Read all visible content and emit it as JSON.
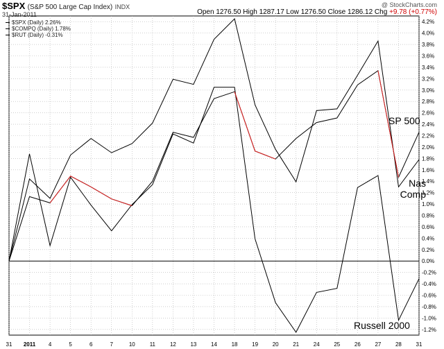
{
  "header": {
    "symbol": "$SPX",
    "name": "(S&P 500 Large Cap Index)",
    "exchange": "INDX",
    "date": "31-Jan-2011",
    "credit": "@ StockCharts.com",
    "open_label": "Open",
    "open": "1276.50",
    "high_label": "High",
    "high": "1287.17",
    "low_label": "Low",
    "low": "1276.50",
    "close_label": "Close",
    "close": "1286.12",
    "chg_label": "Chg",
    "chg": "+9.78 (+0.77%)"
  },
  "legend": [
    "$SPX (Daily) 2.26%",
    "$COMPQ (Daily) 1.78%",
    "$RUT (Daily) -0.31%"
  ],
  "annotations": {
    "sp500": "SP 500",
    "nas1": "Nas",
    "nas2": "Comp",
    "russell": "Russell 2000"
  },
  "colors": {
    "line": "#000000",
    "highlight": "#e02020",
    "grid": "#b0b0b0",
    "zero": "#000000"
  },
  "chart_data": {
    "type": "line",
    "categories": [
      "31",
      "2011",
      "4",
      "5",
      "6",
      "7",
      "10",
      "11",
      "12",
      "13",
      "14",
      "18",
      "19",
      "20",
      "21",
      "24",
      "25",
      "26",
      "27",
      "28",
      "31"
    ],
    "ylim": [
      -1.3,
      4.3
    ],
    "yticks": [
      -1.2,
      -1.0,
      -0.8,
      -0.6,
      -0.4,
      -0.2,
      0.0,
      0.2,
      0.4,
      0.6,
      0.8,
      1.0,
      1.2,
      1.4,
      1.6,
      1.8,
      2.0,
      2.2,
      2.4,
      2.6,
      2.8,
      3.0,
      3.2,
      3.4,
      3.6,
      3.8,
      4.0,
      4.2
    ],
    "grid": true,
    "series": [
      {
        "name": "$SPX",
        "values": [
          0.0,
          1.13,
          1.02,
          1.49,
          1.3,
          1.09,
          0.97,
          1.4,
          2.26,
          2.17,
          2.85,
          2.97,
          1.93,
          1.79,
          2.15,
          2.43,
          2.51,
          3.09,
          3.34,
          1.47,
          2.26
        ]
      },
      {
        "name": "$COMPQ",
        "values": [
          0.0,
          1.44,
          1.1,
          1.86,
          2.15,
          1.9,
          2.06,
          2.42,
          3.19,
          3.1,
          3.89,
          4.25,
          2.74,
          1.96,
          1.39,
          2.64,
          2.67,
          3.26,
          3.86,
          1.3,
          1.78
        ]
      },
      {
        "name": "$RUT",
        "values": [
          0.0,
          1.88,
          0.27,
          1.47,
          0.98,
          0.53,
          0.99,
          1.34,
          2.23,
          2.07,
          3.05,
          3.05,
          0.39,
          -0.73,
          -1.25,
          -0.55,
          -0.48,
          1.29,
          1.5,
          -1.04,
          -0.31
        ]
      }
    ],
    "red_segments": [
      [
        2,
        3,
        4,
        5,
        6
      ],
      [
        11,
        12,
        13
      ],
      [
        18,
        19
      ]
    ]
  }
}
